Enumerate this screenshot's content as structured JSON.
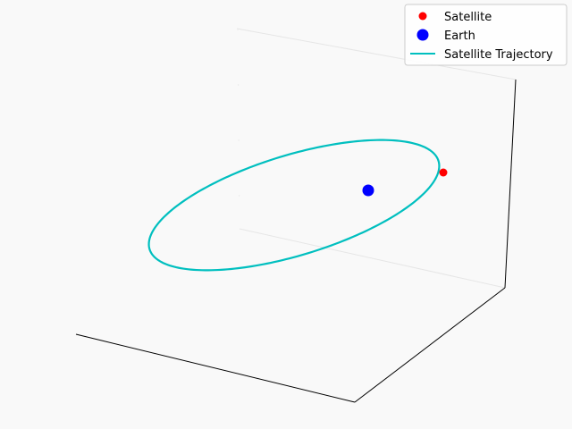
{
  "chart_data": {
    "type": "line",
    "projection": "3d",
    "axes_visible": false,
    "grid": false,
    "legend_position": "top-right",
    "series": [
      {
        "name": "Satellite",
        "kind": "point",
        "marker": "circle",
        "color": "#ff0000"
      },
      {
        "name": "Earth",
        "kind": "point",
        "marker": "circle",
        "color": "#0000ff"
      },
      {
        "name": "Satellite Trajectory",
        "kind": "line",
        "color": "#00bfbf"
      }
    ]
  }
}
